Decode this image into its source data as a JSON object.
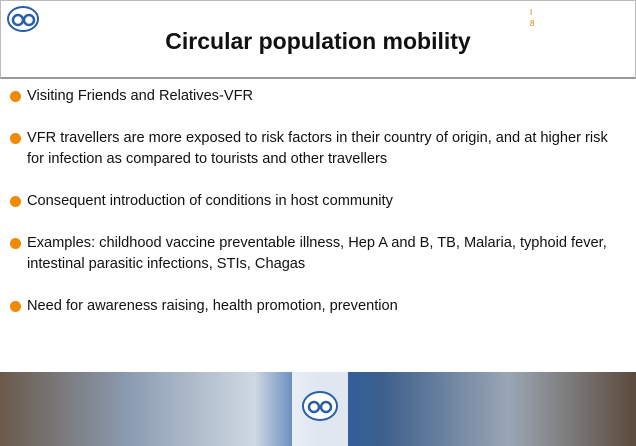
{
  "header": {
    "title": "Circular population mobility",
    "slide_number": [
      "I",
      "8"
    ]
  },
  "bullets": [
    "Visiting Friends and Relatives-VFR",
    "VFR travellers are more exposed to risk factors in their country of origin, and at higher risk for infection as compared to tourists and other travellers",
    "Consequent introduction of conditions in host community",
    "Examples: childhood vaccine preventable illness, Hep A and B, TB, Malaria, typhoid fever, intestinal parasitic infections, STIs, Chagas",
    "Need for awareness raising, health promotion, prevention"
  ]
}
